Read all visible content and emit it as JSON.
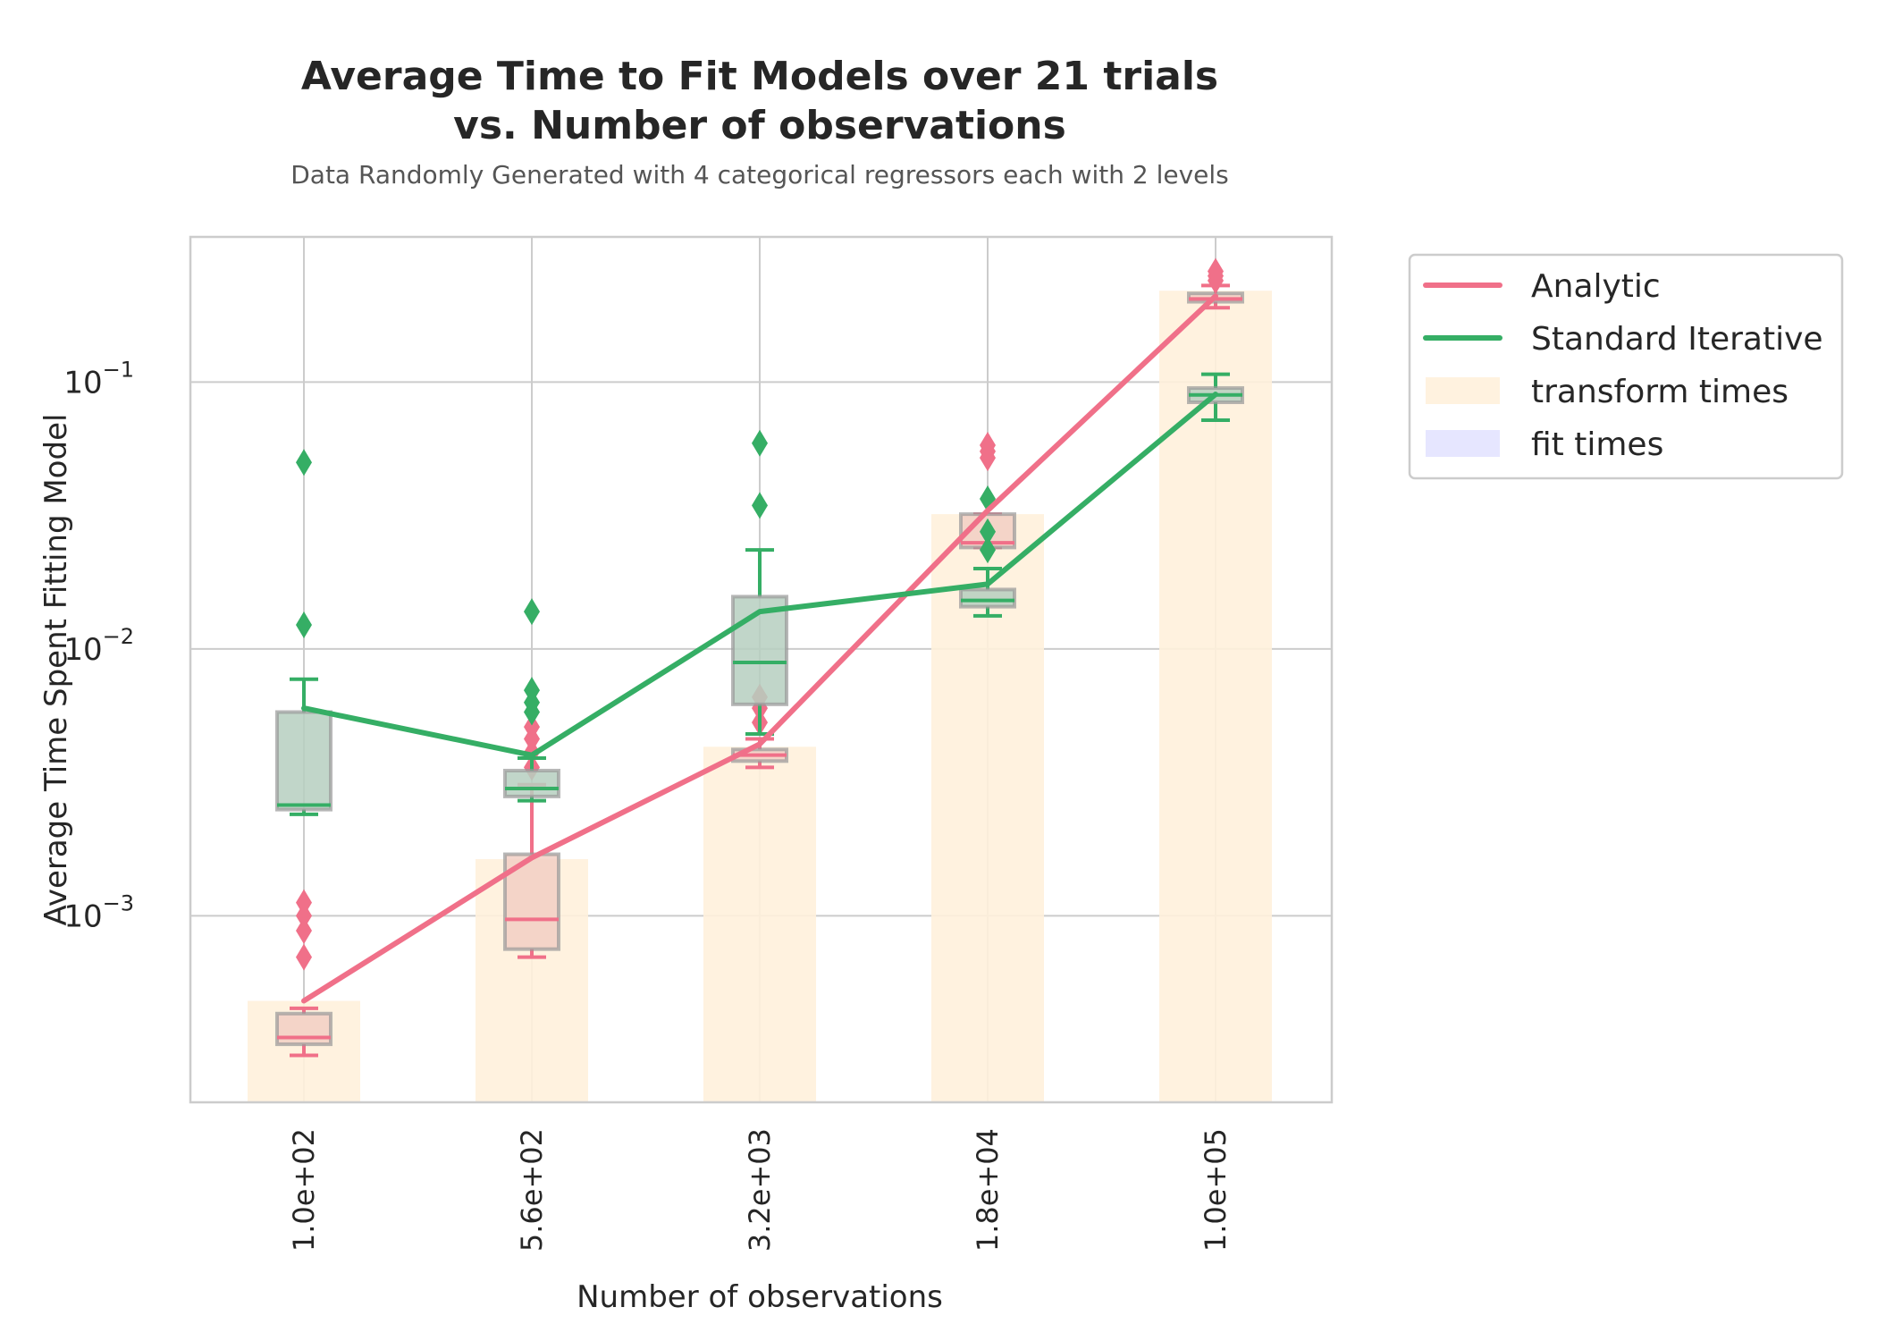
{
  "chart_data": {
    "type": "line",
    "title_lines": [
      "Average Time to Fit Models over 21 trials",
      "vs. Number of observations"
    ],
    "subtitle": "Data Randomly Generated with 4 categorical regressors each with 2 levels",
    "xlabel": "Number of observations",
    "ylabel": "Average Time Spent Fitting Model",
    "y_scale": "log",
    "ylim": [
      0.0002,
      0.35
    ],
    "y_ticks": [
      {
        "value": 0.001,
        "base": "10",
        "exp": "−3"
      },
      {
        "value": 0.01,
        "base": "10",
        "exp": "−2"
      },
      {
        "value": 0.1,
        "base": "10",
        "exp": "−1"
      }
    ],
    "categories": [
      "1.0e+02",
      "5.6e+02",
      "3.2e+03",
      "1.8e+04",
      "1.0e+05"
    ],
    "grid": true,
    "legend_position": "outside-right-top",
    "colors": {
      "analytic": "#f07089",
      "iterative": "#35ae65",
      "transform": "#fff1dc",
      "fit": "#e3e3ff"
    },
    "series": [
      {
        "name": "Analytic",
        "values": [
          0.00048,
          0.00165,
          0.0044,
          0.033,
          0.21
        ]
      },
      {
        "name": "Standard Iterative",
        "values": [
          0.006,
          0.004,
          0.0138,
          0.0175,
          0.09
        ]
      }
    ],
    "bars": [
      {
        "name": "transform times",
        "values": [
          0.00048,
          0.00163,
          0.0043,
          0.032,
          0.22
        ]
      },
      {
        "name": "fit times",
        "values": [
          0.0,
          0.0,
          0.0,
          0.0,
          0.0
        ]
      }
    ],
    "boxplots": [
      {
        "series": "Analytic",
        "boxes": [
          {
            "q1": 0.00033,
            "median": 0.00035,
            "q3": 0.00043,
            "whisker_low": 0.0003,
            "whisker_high": 0.00045,
            "outliers": [
              0.0007,
              0.00088,
              0.001,
              0.00112
            ]
          },
          {
            "q1": 0.00075,
            "median": 0.00097,
            "q3": 0.0017,
            "whisker_low": 0.0007,
            "whisker_high": 0.0031,
            "outliers": [
              0.0036,
              0.0041,
              0.0046,
              0.0051
            ]
          },
          {
            "q1": 0.0038,
            "median": 0.004,
            "q3": 0.0042,
            "whisker_low": 0.0036,
            "whisker_high": 0.0046,
            "outliers": [
              0.0053,
              0.006,
              0.0066
            ]
          },
          {
            "q1": 0.024,
            "median": 0.025,
            "q3": 0.032,
            "whisker_low": 0.024,
            "whisker_high": 0.032,
            "outliers": [
              0.052,
              0.055,
              0.058
            ]
          },
          {
            "q1": 0.2,
            "median": 0.205,
            "q3": 0.215,
            "whisker_low": 0.19,
            "whisker_high": 0.23,
            "outliers": [
              0.24,
              0.25,
              0.26
            ]
          }
        ]
      },
      {
        "series": "Standard Iterative",
        "boxes": [
          {
            "q1": 0.0025,
            "median": 0.0026,
            "q3": 0.0058,
            "whisker_low": 0.0024,
            "whisker_high": 0.0077,
            "outliers": [
              0.0123,
              0.05
            ]
          },
          {
            "q1": 0.0028,
            "median": 0.003,
            "q3": 0.0035,
            "whisker_low": 0.0027,
            "whisker_high": 0.0039,
            "outliers": [
              0.0058,
              0.0063,
              0.007,
              0.0138
            ]
          },
          {
            "q1": 0.0062,
            "median": 0.0089,
            "q3": 0.0157,
            "whisker_low": 0.0048,
            "whisker_high": 0.0235,
            "outliers": [
              0.0345,
              0.059
            ]
          },
          {
            "q1": 0.0144,
            "median": 0.0152,
            "q3": 0.0167,
            "whisker_low": 0.0133,
            "whisker_high": 0.02,
            "outliers": [
              0.0235,
              0.0275,
              0.0365
            ]
          },
          {
            "q1": 0.084,
            "median": 0.0895,
            "q3": 0.095,
            "whisker_low": 0.072,
            "whisker_high": 0.107,
            "outliers": []
          }
        ]
      }
    ]
  }
}
